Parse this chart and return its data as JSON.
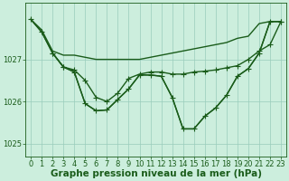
{
  "xlabel": "Graphe pression niveau de la mer (hPa)",
  "background_color": "#cceedd",
  "line_color": "#1a5c1a",
  "grid_color": "#99ccbb",
  "xlim": [
    -0.5,
    23.5
  ],
  "ylim": [
    1024.7,
    1028.35
  ],
  "yticks": [
    1025,
    1026,
    1027
  ],
  "xticks": [
    0,
    1,
    2,
    3,
    4,
    5,
    6,
    7,
    8,
    9,
    10,
    11,
    12,
    13,
    14,
    15,
    16,
    17,
    18,
    19,
    20,
    21,
    22,
    23
  ],
  "series": [
    {
      "x": [
        0,
        1,
        2,
        3,
        4,
        5,
        6,
        7,
        8,
        9,
        10,
        11,
        12,
        13,
        14,
        15,
        16,
        17,
        18,
        19,
        20,
        21,
        22,
        23
      ],
      "y": [
        1027.95,
        1027.7,
        1027.2,
        1027.1,
        1027.1,
        1027.05,
        1027.0,
        1027.0,
        1027.0,
        1027.0,
        1027.0,
        1027.05,
        1027.1,
        1027.15,
        1027.2,
        1027.25,
        1027.3,
        1027.35,
        1027.4,
        1027.5,
        1027.55,
        1027.85,
        1027.9,
        1027.9
      ],
      "has_markers": false
    },
    {
      "x": [
        0,
        1,
        2,
        3,
        4,
        5,
        6,
        7,
        8,
        9,
        10,
        11,
        12,
        13,
        14,
        15,
        16,
        17,
        18,
        19,
        20,
        21,
        22,
        23
      ],
      "y": [
        1027.95,
        1027.65,
        1027.15,
        1026.82,
        1026.75,
        1026.5,
        1026.1,
        1026.0,
        1026.2,
        1026.55,
        1026.65,
        1026.7,
        1026.7,
        1026.65,
        1026.65,
        1026.7,
        1026.72,
        1026.75,
        1026.8,
        1026.85,
        1027.0,
        1027.2,
        1027.35,
        1027.9
      ],
      "has_markers": true
    },
    {
      "x": [
        2,
        3,
        4,
        5,
        6,
        7,
        8,
        9,
        10,
        11,
        12,
        13,
        14,
        15,
        16,
        17,
        18,
        19,
        20,
        21,
        22,
        23
      ],
      "y": [
        1027.15,
        1026.82,
        1026.7,
        1025.95,
        1025.78,
        1025.8,
        1026.05,
        1026.3,
        1026.63,
        1026.63,
        1026.6,
        1026.1,
        1025.35,
        1025.35,
        1025.65,
        1025.85,
        1026.15,
        1026.6,
        1026.78,
        1027.15,
        1027.9,
        1027.9
      ],
      "has_markers": true
    },
    {
      "x": [
        0,
        1,
        2,
        3,
        4,
        5,
        6,
        7,
        8,
        9,
        10,
        11,
        12,
        13,
        14,
        15,
        16,
        17,
        18,
        19,
        20,
        21,
        22,
        23
      ],
      "y": [
        1027.95,
        1027.65,
        1027.15,
        1026.82,
        1026.7,
        1025.95,
        1025.78,
        1025.8,
        1026.05,
        1026.3,
        1026.63,
        1026.63,
        1026.6,
        1026.1,
        1025.35,
        1025.35,
        1025.65,
        1025.85,
        1026.15,
        1026.6,
        1026.78,
        1027.15,
        1027.9,
        1027.9
      ],
      "has_markers": false
    }
  ],
  "markersize": 3,
  "linewidth": 1.0,
  "xlabel_fontsize": 7.5,
  "tick_fontsize": 6.0
}
